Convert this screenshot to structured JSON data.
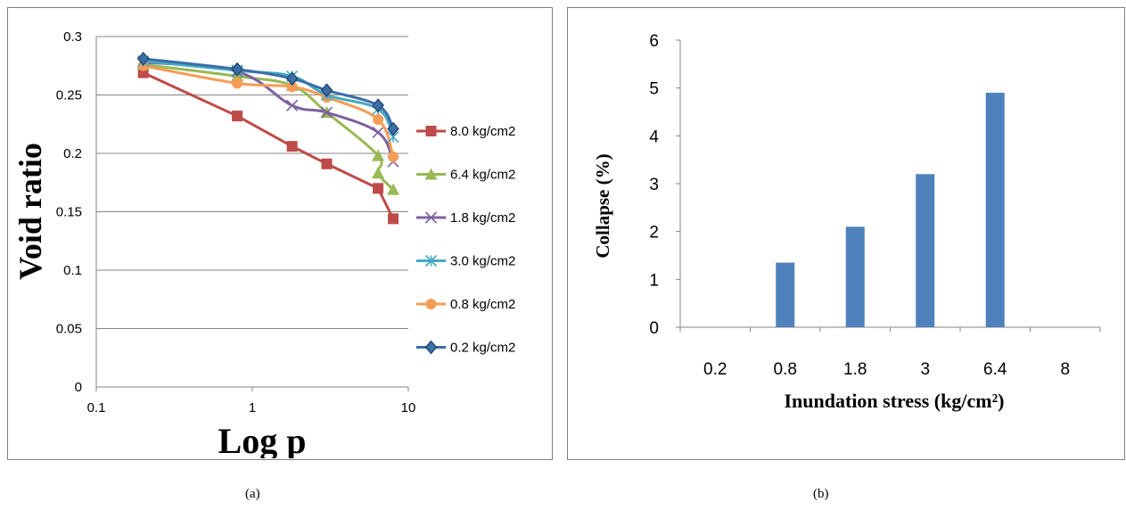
{
  "captions": {
    "a": "(a)",
    "b": "(b)"
  },
  "chart_data": [
    {
      "type": "line",
      "title": "",
      "xlabel": "Log p",
      "ylabel": "Void ratio",
      "xscale": "log",
      "xlim": [
        0.1,
        10
      ],
      "ylim": [
        0,
        0.3
      ],
      "xticks": [
        "0.1",
        "1",
        "10"
      ],
      "yticks": [
        "0",
        "0.05",
        "0.1",
        "0.15",
        "0.2",
        "0.25",
        "0.3"
      ],
      "grid": "horizontal",
      "legend_position": "right",
      "series": [
        {
          "name": "8.0 kg/cm2",
          "color": "#BE4B48",
          "marker": "square",
          "x": [
            0.2,
            0.8,
            1.8,
            3.0,
            6.4,
            8.0
          ],
          "y": [
            0.269,
            0.232,
            0.206,
            0.191,
            0.17,
            0.144
          ]
        },
        {
          "name": "6.4 kg/cm2",
          "color": "#98B954",
          "marker": "triangle",
          "x": [
            0.2,
            0.8,
            1.8,
            3.0,
            6.4,
            6.4,
            8.0
          ],
          "y": [
            0.276,
            0.266,
            0.258,
            0.235,
            0.198,
            0.183,
            0.169
          ]
        },
        {
          "name": "1.8 kg/cm2",
          "color": "#7D60A0",
          "marker": "x",
          "x": [
            0.2,
            0.8,
            1.8,
            3.0,
            6.4,
            8.0
          ],
          "y": [
            0.278,
            0.27,
            0.241,
            0.235,
            0.218,
            0.193
          ]
        },
        {
          "name": "3.0 kg/cm2",
          "color": "#46AAC4",
          "marker": "star",
          "x": [
            0.2,
            0.8,
            1.8,
            3.0,
            6.4,
            8.0
          ],
          "y": [
            0.279,
            0.271,
            0.266,
            0.25,
            0.238,
            0.214
          ]
        },
        {
          "name": "0.8 kg/cm2",
          "color": "#F59D56",
          "marker": "circle",
          "x": [
            0.2,
            0.8,
            1.8,
            3.0,
            6.4,
            8.0
          ],
          "y": [
            0.275,
            0.26,
            0.257,
            0.248,
            0.229,
            0.197
          ]
        },
        {
          "name": "0.2 kg/cm2",
          "color": "#3B6DA8",
          "marker": "diamond",
          "x": [
            0.2,
            0.8,
            1.8,
            3.0,
            6.4,
            8.0
          ],
          "y": [
            0.281,
            0.272,
            0.264,
            0.254,
            0.241,
            0.221
          ]
        }
      ]
    },
    {
      "type": "bar",
      "title": "",
      "xlabel": "Inundation stress (kg/cm²)",
      "ylabel": "Collapse (%)",
      "ylim": [
        0,
        6
      ],
      "yticks": [
        "0",
        "1",
        "2",
        "3",
        "4",
        "5",
        "6"
      ],
      "categories": [
        "0.2",
        "0.8",
        "1.8",
        "3",
        "6.4",
        "8"
      ],
      "values": [
        0,
        1.35,
        2.1,
        3.2,
        4.9,
        0
      ],
      "color": "#4F81BD",
      "grid": "none"
    }
  ]
}
